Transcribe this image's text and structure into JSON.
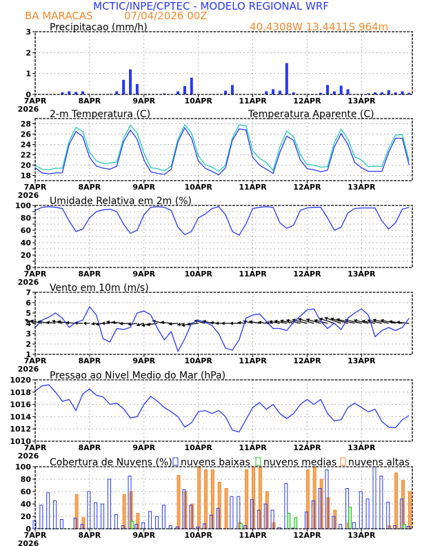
{
  "header": {
    "title": "MCTIC/INPE/CPTEC - MODELO REGIONAL WRF",
    "station": "BA MARACAS",
    "run": "07/04/2026 00Z",
    "location": "40.4308W 13.4411S 964m"
  },
  "colors": {
    "blue": "#2838f0",
    "cyan": "#20c8b8",
    "orange": "#f08a30",
    "green": "#20c020"
  },
  "chart_data": [
    {
      "type": "bar",
      "title": "Precipitacao (mm/h)",
      "ylim": [
        0,
        3
      ],
      "yticks": [
        "0",
        "1",
        "2",
        "3"
      ],
      "xticks": [
        "7APR",
        "8APR",
        "9APR",
        "10APR",
        "11APR",
        "12APR",
        "13APR"
      ],
      "xyear": "2026",
      "time_step_hours": 3,
      "values": [
        0,
        0,
        0,
        0,
        0.1,
        0.15,
        0.12,
        0.15,
        0,
        0,
        0,
        0.02,
        0.15,
        0.7,
        1.2,
        0.5,
        0,
        0,
        0,
        0.05,
        0,
        0.15,
        0.4,
        0.8,
        0,
        0,
        0,
        0,
        0.18,
        0.45,
        0,
        0,
        0,
        0,
        0.15,
        0.25,
        0.18,
        1.5,
        0.1,
        0,
        0,
        0,
        0.08,
        0.45,
        0.15,
        0.42,
        0.25,
        0,
        0,
        0.05,
        0.1,
        0.1,
        0.2,
        0.1,
        0.15,
        0.08
      ]
    },
    {
      "type": "line",
      "title": "2-m Temperatura (C)",
      "legend2": "Temperatura Aparente (C)",
      "ylim": [
        17,
        29
      ],
      "yticks": [
        "18",
        "20",
        "22",
        "24",
        "26",
        "28"
      ],
      "xticks": [
        "7APR",
        "8APR",
        "9APR",
        "10APR",
        "11APR",
        "12APR",
        "13APR"
      ],
      "xyear": "2026",
      "series": [
        {
          "name": "2-m Temperatura",
          "values": [
            19.5,
            18.5,
            18.3,
            18.5,
            18.5,
            24,
            26.5,
            25.5,
            21.5,
            19.8,
            19.4,
            19.2,
            19.8,
            24.5,
            26.8,
            25,
            21,
            18.7,
            18.4,
            18.2,
            19.2,
            24.5,
            27.2,
            25.2,
            20.8,
            19.4,
            18.8,
            18.1,
            19.5,
            24.8,
            27,
            26.8,
            21.5,
            20,
            19.2,
            18.4,
            22.5,
            25.6,
            24.8,
            21,
            19.3,
            19.1,
            18.7,
            19,
            23.5,
            26.1,
            24,
            20.5,
            19.5,
            18.8,
            18.8,
            18.8,
            22.5,
            25.2,
            25.2,
            20
          ]
        },
        {
          "name": "Temperatura Aparente",
          "values": [
            20,
            19.2,
            19.1,
            19.4,
            19.4,
            24.6,
            27.3,
            26.5,
            22.5,
            20.8,
            20.3,
            20.4,
            20.6,
            25.2,
            27.7,
            26.2,
            22.3,
            19.5,
            19.3,
            18.9,
            19.8,
            25,
            27.8,
            26.2,
            21.8,
            20.1,
            19.6,
            18.8,
            20,
            25.2,
            27.8,
            27.6,
            22.8,
            21.3,
            20.5,
            19,
            23.5,
            26.6,
            25.5,
            22,
            20.1,
            20,
            19.6,
            19.7,
            24.3,
            27,
            25,
            21.6,
            21,
            19.7,
            19.8,
            19.7,
            23.2,
            25.8,
            25.9,
            20.8
          ]
        }
      ]
    },
    {
      "type": "line",
      "title": "Umidade Relativa em 2m (%)",
      "ylim": [
        0,
        100
      ],
      "yticks": [
        "0",
        "10",
        "20",
        "30",
        "40",
        "50",
        "60",
        "70",
        "80",
        "90",
        "100"
      ],
      "xticks": [
        "7APR",
        "8APR",
        "9APR",
        "10APR",
        "11APR",
        "12APR",
        "13APR"
      ],
      "xyear": "2026",
      "values": [
        92,
        97,
        98,
        97,
        95,
        75,
        58,
        62,
        80,
        90,
        93,
        94,
        90,
        70,
        55,
        60,
        85,
        97,
        98,
        97,
        92,
        65,
        53,
        58,
        80,
        86,
        95,
        98,
        85,
        58,
        52,
        70,
        95,
        97,
        98,
        97,
        72,
        63,
        68,
        92,
        96,
        97,
        97,
        80,
        60,
        65,
        88,
        95,
        96,
        96,
        96,
        75,
        62,
        72,
        94,
        97
      ]
    },
    {
      "type": "line",
      "title": "Vento em 10m (m/s)",
      "ylim": [
        1,
        7
      ],
      "yticks": [
        "1",
        "2",
        "3",
        "4",
        "5",
        "6",
        "7"
      ],
      "xticks": [
        "7APR",
        "8APR",
        "9APR",
        "10APR",
        "11APR",
        "12APR",
        "13APR"
      ],
      "xyear": "2026",
      "speed": [
        3.6,
        4.3,
        4.6,
        5.0,
        4.5,
        3.6,
        4.1,
        4.3,
        5.6,
        4.8,
        2.5,
        2.2,
        3.5,
        3.4,
        3.6,
        5.0,
        5.2,
        4.8,
        3.5,
        2.4,
        3.2,
        1.3,
        2.5,
        4.0,
        4.3,
        4.1,
        3.8,
        3.0,
        1.6,
        1.4,
        2.4,
        4.5,
        4.8,
        4.9,
        4.2,
        3.5,
        3.5,
        3.3,
        4.1,
        4.7,
        5.3,
        5.4,
        4.2,
        3.5,
        4.0,
        3.4,
        4.5,
        5.0,
        5.4,
        4.8,
        2.7,
        3.3,
        3.6,
        3.3,
        3.6,
        4.5
      ],
      "u": [
        -2.5,
        -2.8,
        -2.6,
        -2.2,
        -2.5,
        -2.8,
        -2.4,
        -2.0,
        -1.5,
        -1.2,
        -1.8,
        -2.0,
        -2.5,
        -2.8,
        -2.6,
        -2.2,
        -1.8,
        -2.2,
        -2.6,
        -2.9,
        -2.5,
        -2.2,
        -1.8,
        -2.4,
        -2.8,
        -2.6,
        -2.2,
        -2.0,
        -2.4,
        -2.6,
        -2.2,
        -2.0,
        -2.3,
        -2.5,
        -2.0,
        -1.8,
        -2.6,
        -3.0,
        -3.2,
        -3.4,
        -3.6,
        -3.8,
        -3.5,
        -3.2,
        -3.6,
        -4.0,
        -4.2,
        -4.4,
        -4.0,
        -3.5,
        -3.2,
        -3.5,
        -3.8,
        -3.6,
        -3.2,
        -3.0
      ],
      "v": [
        0.9,
        0.7,
        0.5,
        0.3,
        0.6,
        0.5,
        0.2,
        0.1,
        0.0,
        -0.2,
        -0.3,
        0.0,
        0.4,
        0.3,
        -0.1,
        -0.3,
        -0.5,
        -0.6,
        -0.4,
        0.6,
        0.3,
        -0.2,
        -0.4,
        -0.6,
        -0.3,
        0.7,
        0.6,
        0.2,
        0.0,
        0.0,
        0.0,
        0.2,
        0.6,
        0.5,
        0.3,
        0.2,
        0.5,
        0.6,
        0.7,
        0.8,
        0.9,
        1.1,
        1.0,
        0.8,
        1.2,
        1.4,
        1.2,
        1.0,
        0.9,
        0.8,
        0.6,
        0.8,
        0.9,
        0.8,
        0.5,
        0.3
      ]
    },
    {
      "type": "line",
      "title": "Pressao ao Nivel Medio do Mar (hPa)",
      "ylim": [
        1010,
        1020
      ],
      "yticks": [
        "1010",
        "1012",
        "1014",
        "1016",
        "1018",
        "1020"
      ],
      "xticks": [
        "7APR",
        "8APR",
        "9APR",
        "10APR",
        "11APR",
        "12APR",
        "13APR"
      ],
      "xyear": "2026",
      "values": [
        1018.2,
        1019,
        1019.2,
        1018,
        1016.5,
        1016.8,
        1015,
        1017.7,
        1018.5,
        1017.5,
        1017.2,
        1016,
        1016.2,
        1015.3,
        1013.8,
        1014,
        1016,
        1017.3,
        1016.5,
        1015.5,
        1014.8,
        1014,
        1012.3,
        1013,
        1014.8,
        1015,
        1014.5,
        1015,
        1014,
        1011.8,
        1011.5,
        1013.5,
        1015.5,
        1016.3,
        1015.2,
        1016,
        1014.5,
        1013.7,
        1014.5,
        1016,
        1016.8,
        1016,
        1016.8,
        1014.5,
        1013.3,
        1013.5,
        1015.5,
        1016.2,
        1015.5,
        1014.8,
        1015.2,
        1013.2,
        1012.3,
        1012.2,
        1013.5,
        1014.2
      ]
    },
    {
      "type": "bar",
      "title": "Cobertura de Nuvens (%)",
      "ylim": [
        0,
        100
      ],
      "yticks": [
        "0",
        "20",
        "40",
        "60",
        "80",
        "100"
      ],
      "xticks": [
        "7APR",
        "8APR",
        "9APR",
        "10APR",
        "11APR",
        "12APR",
        "13APR"
      ],
      "xyear": "2026",
      "series": [
        {
          "name": "nuvens baixas",
          "values": [
            13,
            38,
            58,
            45,
            15,
            0,
            17,
            7,
            60,
            42,
            40,
            80,
            23,
            5,
            85,
            7,
            10,
            28,
            20,
            38,
            5,
            3,
            63,
            38,
            3,
            8,
            22,
            33,
            0,
            52,
            52,
            5,
            47,
            30,
            40,
            30,
            2,
            73,
            1,
            0,
            27,
            45,
            65,
            95,
            20,
            7,
            65,
            10,
            60,
            48,
            100,
            85,
            43,
            5,
            48,
            4
          ]
        },
        {
          "name": "nuvens medias",
          "values": [
            0,
            0,
            0,
            0,
            0,
            0,
            0,
            0,
            0,
            0,
            0,
            0,
            0,
            0,
            12,
            0,
            0,
            0,
            0,
            0,
            0,
            0,
            0,
            0,
            0,
            0,
            0,
            0,
            0,
            0,
            8,
            0,
            0,
            0,
            0,
            0,
            0,
            25,
            18,
            0,
            0,
            0,
            0,
            0,
            0,
            0,
            35,
            0,
            0,
            0,
            0,
            0,
            0,
            0,
            7,
            0
          ]
        },
        {
          "name": "nuvens altas",
          "values": [
            0,
            0,
            0,
            0,
            0,
            0,
            55,
            18,
            0,
            0,
            0,
            0,
            0,
            55,
            60,
            25,
            0,
            0,
            0,
            0,
            0,
            86,
            60,
            40,
            100,
            95,
            95,
            75,
            65,
            0,
            10,
            95,
            100,
            100,
            60,
            10,
            0,
            0,
            0,
            0,
            95,
            100,
            80,
            50,
            30,
            0,
            10,
            0,
            0,
            0,
            0,
            0,
            5,
            90,
            78,
            60
          ]
        }
      ]
    }
  ]
}
